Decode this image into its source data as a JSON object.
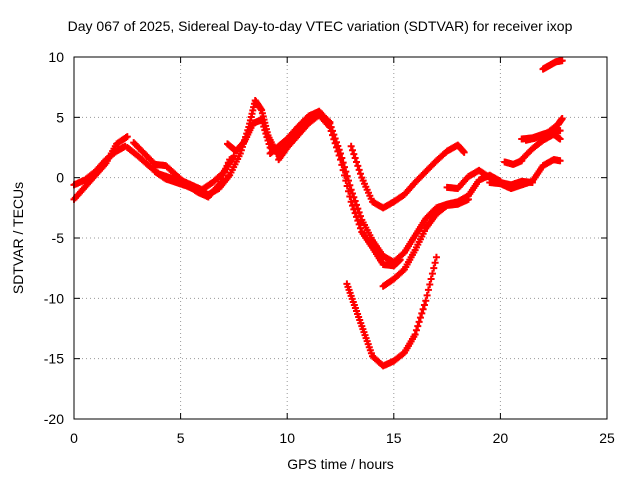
{
  "chart_data": {
    "type": "scatter",
    "title": "Day 067 of 2025, Sidereal Day-to-day VTEC variation (SDTVAR) for receiver ixop",
    "xlabel": "GPS time / hours",
    "ylabel": "SDTVAR / TECUs",
    "xlim": [
      0,
      25
    ],
    "ylim": [
      -20,
      10
    ],
    "xticks": [
      0,
      5,
      10,
      15,
      20,
      25
    ],
    "yticks": [
      -20,
      -15,
      -10,
      -5,
      0,
      5,
      10
    ],
    "grid": true,
    "color": "#ff0000",
    "marker": "plus",
    "series": [
      {
        "x": [
          0,
          0.5,
          1,
          1.5,
          2,
          2.5
        ],
        "y": [
          -1.8,
          -0.8,
          0.2,
          1.2,
          2.8,
          3.4
        ]
      },
      {
        "x": [
          0,
          0.5,
          1,
          1.5,
          2,
          2.4
        ],
        "y": [
          -0.6,
          -0.2,
          0.5,
          1.5,
          2.2,
          2.6
        ]
      },
      {
        "x": [
          2.5,
          3,
          3.5,
          4,
          4.5,
          5,
          5.5,
          6,
          6.5,
          7,
          7.5
        ],
        "y": [
          2.5,
          1.8,
          1,
          0.3,
          0,
          -0.2,
          -0.6,
          -1,
          -0.4,
          0.4,
          1.8
        ]
      },
      {
        "x": [
          2.8,
          3.3,
          3.8,
          4.3,
          4.8,
          5.3,
          5.8,
          6.3,
          6.8,
          7.3
        ],
        "y": [
          2.9,
          2,
          1.1,
          1,
          0.2,
          -0.6,
          -1.2,
          -1.6,
          -0.6,
          1.5
        ]
      },
      {
        "x": [
          3.8,
          4.3,
          4.8,
          5.3,
          5.8,
          6.3,
          6.8,
          7.3,
          7.8,
          8.2,
          8.5,
          8.8,
          9.1,
          9.5
        ],
        "y": [
          0.5,
          -0.1,
          -0.4,
          -0.7,
          -1.1,
          -1.4,
          -0.9,
          0.2,
          2,
          4.2,
          6.4,
          5.6,
          3.5,
          2
        ]
      },
      {
        "x": [
          7.2,
          7.6,
          8,
          8.4,
          8.8,
          9.2,
          9.6,
          10,
          10.5,
          11,
          11.5,
          12
        ],
        "y": [
          2.8,
          2.2,
          3,
          4.5,
          4.8,
          2.5,
          2,
          2.6,
          3.6,
          4.6,
          5.4,
          4.6
        ]
      },
      {
        "x": [
          9.2,
          9.6,
          10,
          10.5,
          11,
          11.5,
          12,
          12.5,
          13,
          13.5,
          14,
          14.5,
          15,
          15.5,
          16,
          16.5,
          17,
          17.5,
          18,
          18.5,
          19,
          19.5,
          20
        ],
        "y": [
          2,
          2.6,
          3.2,
          4.2,
          5.1,
          5.5,
          4.5,
          2,
          -1,
          -3.5,
          -5.2,
          -6.5,
          -7,
          -6.2,
          -4.8,
          -3.4,
          -2.5,
          -2.2,
          -2,
          -1.5,
          -0.2,
          0.2,
          -0.3
        ]
      },
      {
        "x": [
          9.6,
          10,
          10.5,
          11,
          11.5,
          12,
          12.5,
          13,
          13.5,
          14,
          14.5,
          15,
          15.3
        ],
        "y": [
          1.5,
          2.5,
          3.5,
          4.5,
          5.2,
          4.2,
          1.5,
          -2,
          -4.5,
          -5.8,
          -7.2,
          -7.3,
          -6.8
        ]
      },
      {
        "x": [
          13,
          13.5,
          14,
          14.5,
          15,
          15.5,
          16,
          16.5,
          17,
          17.5,
          18,
          18.3
        ],
        "y": [
          2.6,
          0,
          -2,
          -2.5,
          -2,
          -1.4,
          -0.4,
          0.5,
          1.4,
          2.2,
          2.7,
          2.1
        ]
      },
      {
        "x": [
          12.8,
          13.2,
          13.6,
          14,
          14.5,
          15,
          15.5,
          16,
          16.5,
          17
        ],
        "y": [
          -8.8,
          -10.8,
          -12.8,
          -14.8,
          -15.6,
          -15.2,
          -14.5,
          -13,
          -10.2,
          -6.6
        ]
      },
      {
        "x": [
          14.5,
          15,
          15.5,
          16,
          16.5,
          17,
          17.5,
          18,
          18.5
        ],
        "y": [
          -9,
          -8.4,
          -7.6,
          -6,
          -4.2,
          -3,
          -2.3,
          -2.2,
          -1.8
        ]
      },
      {
        "x": [
          17.5,
          18,
          18.5,
          19,
          19.5,
          20,
          20.5,
          21,
          21.5
        ],
        "y": [
          -0.8,
          -0.9,
          0.1,
          0.6,
          0,
          -0.4,
          -0.6,
          -0.3,
          -0.4
        ]
      },
      {
        "x": [
          19.5,
          20,
          20.5,
          21,
          21.5,
          22,
          22.5,
          22.8
        ],
        "y": [
          -0.4,
          -0.5,
          -0.9,
          -0.6,
          -0.3,
          1,
          1.5,
          1.4
        ]
      },
      {
        "x": [
          20.2,
          20.6,
          21
        ],
        "y": [
          1.3,
          1.1,
          1.4
        ]
      },
      {
        "x": [
          21,
          21.5,
          22,
          22.5,
          22.8
        ],
        "y": [
          1.5,
          2.4,
          3.1,
          3.6,
          3.2
        ]
      },
      {
        "x": [
          21,
          21.5,
          22,
          22.5,
          22.8
        ],
        "y": [
          3.2,
          3.3,
          3.6,
          3.9,
          3.9
        ]
      },
      {
        "x": [
          21.2,
          21.7,
          22.2,
          22.7,
          22.9
        ],
        "y": [
          3.1,
          3.3,
          3.7,
          4.4,
          4.9
        ]
      },
      {
        "x": [
          22,
          22.3,
          22.6,
          22.9
        ],
        "y": [
          9,
          9.3,
          9.6,
          9.7
        ]
      }
    ]
  }
}
